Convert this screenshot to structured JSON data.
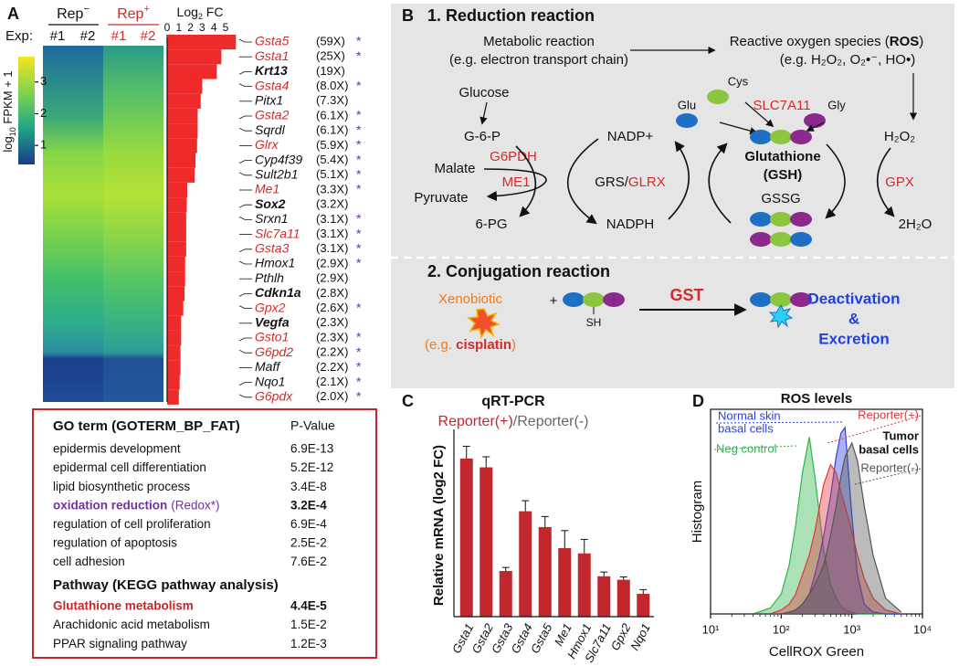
{
  "panel_a": {
    "letter": "A",
    "rep_minus": {
      "text": "Rep",
      "sup": "−"
    },
    "rep_plus": {
      "text": "Rep",
      "sup": "+"
    },
    "exp_label": "Exp:",
    "exps": [
      "#1",
      "#2",
      "#1",
      "#2"
    ],
    "colorbar": {
      "label_parts": [
        "log",
        "10",
        " FPKM + 1"
      ],
      "ticks": [
        1,
        2,
        3
      ],
      "lim": [
        0.4,
        3.8
      ]
    },
    "fc_title_parts": [
      "Log",
      "2",
      " FC"
    ],
    "star": "*",
    "genes": [
      {
        "name": "Gsta5",
        "fold": "(59X)",
        "red": true,
        "bold": false,
        "star": true
      },
      {
        "name": "Gsta1",
        "fold": "(25X)",
        "red": true,
        "bold": false,
        "star": true
      },
      {
        "name": "Krt13",
        "fold": "(19X)",
        "red": false,
        "bold": true,
        "star": false
      },
      {
        "name": "Gsta4",
        "fold": "(8.0X)",
        "red": true,
        "bold": false,
        "star": true
      },
      {
        "name": "Pitx1",
        "fold": "(7.3X)",
        "red": false,
        "bold": false,
        "star": false
      },
      {
        "name": "Gsta2",
        "fold": "(6.1X)",
        "red": true,
        "bold": false,
        "star": true
      },
      {
        "name": "Sqrdl",
        "fold": "(6.1X)",
        "red": false,
        "bold": false,
        "star": true
      },
      {
        "name": "Glrx",
        "fold": "(5.9X)",
        "red": true,
        "bold": false,
        "star": true
      },
      {
        "name": "Cyp4f39",
        "fold": "(5.4X)",
        "red": false,
        "bold": false,
        "star": true
      },
      {
        "name": "Sult2b1",
        "fold": "(5.1X)",
        "red": false,
        "bold": false,
        "star": true
      },
      {
        "name": "Me1",
        "fold": "(3.3X)",
        "red": true,
        "bold": false,
        "star": true
      },
      {
        "name": "Sox2",
        "fold": "(3.2X)",
        "red": false,
        "bold": true,
        "star": false
      },
      {
        "name": "Srxn1",
        "fold": "(3.1X)",
        "red": false,
        "bold": false,
        "star": true
      },
      {
        "name": "Slc7a11",
        "fold": "(3.1X)",
        "red": true,
        "bold": false,
        "star": true
      },
      {
        "name": "Gsta3",
        "fold": "(3.1X)",
        "red": true,
        "bold": false,
        "star": true
      },
      {
        "name": "Hmox1",
        "fold": "(2.9X)",
        "red": false,
        "bold": false,
        "star": true
      },
      {
        "name": "Pthlh",
        "fold": "(2.9X)",
        "red": false,
        "bold": false,
        "star": false
      },
      {
        "name": "Cdkn1a",
        "fold": "(2.8X)",
        "red": false,
        "bold": true,
        "star": false
      },
      {
        "name": "Gpx2",
        "fold": "(2.6X)",
        "red": true,
        "bold": false,
        "star": true
      },
      {
        "name": "Vegfa",
        "fold": "(2.3X)",
        "red": false,
        "bold": true,
        "star": false
      },
      {
        "name": "Gsto1",
        "fold": "(2.3X)",
        "red": true,
        "bold": false,
        "star": true
      },
      {
        "name": "G6pd2",
        "fold": "(2.2X)",
        "red": true,
        "bold": false,
        "star": true
      },
      {
        "name": "Maff",
        "fold": "(2.2X)",
        "red": false,
        "bold": false,
        "star": true
      },
      {
        "name": "Nqo1",
        "fold": "(2.1X)",
        "red": false,
        "bold": false,
        "star": true
      },
      {
        "name": "G6pdx",
        "fold": "(2.0X)",
        "red": true,
        "bold": false,
        "star": true
      }
    ]
  },
  "go_table": {
    "header": "GO term (GOTERM_BP_FAT)",
    "p_header": "P-Value",
    "rows": [
      {
        "term": "epidermis development",
        "p": "6.9E-13"
      },
      {
        "term": "epidermal cell differentiation",
        "p": "5.2E-12"
      },
      {
        "term": "lipid biosynthetic process",
        "p": "3.4E-8"
      },
      {
        "term": "oxidation reduction",
        "note": "(Redox*)",
        "p": "3.2E-4",
        "color": "#7030a0",
        "bold": true
      },
      {
        "term": "regulation of cell proliferation",
        "p": "6.9E-4"
      },
      {
        "term": "regulation of apoptosis",
        "p": "2.5E-2"
      },
      {
        "term": "cell adhesion",
        "p": "7.6E-2"
      }
    ],
    "pathway_header": "Pathway (KEGG pathway analysis)",
    "pathway_rows": [
      {
        "term": "Glutathione metabolism",
        "p": "4.4E-5",
        "color": "#c1272d",
        "bold": true
      },
      {
        "term": "Arachidonic acid metabolism",
        "p": "1.5E-2"
      },
      {
        "term": "PPAR signaling pathway",
        "p": "1.2E-3"
      }
    ]
  },
  "panel_b": {
    "letter": "B",
    "section1": "1. Reduction reaction",
    "metabolic": [
      "Metabolic reaction",
      "(e.g. electron transport chain)"
    ],
    "ros_parts": [
      "Reactive oxygen species (",
      "ROS",
      ")"
    ],
    "ros_example": "(e.g. H₂O₂, O₂•⁻, HO•)",
    "glucose": "Glucose",
    "g6p": "G-6-P",
    "g6pdh": "G6PDH",
    "malate": "Malate",
    "me1": "ME1",
    "pyruvate": "Pyruvate",
    "pg6": "6-PG",
    "nadp": "NADP+",
    "grs_parts": [
      "GRS/",
      "GLRX"
    ],
    "nadph": "NADPH",
    "cys": "Cys",
    "glu": "Glu",
    "gly": "Gly",
    "slc7a11": "SLC7A11",
    "gsh": [
      "Glutathione",
      "(GSH)"
    ],
    "gssg": "GSSG",
    "h2o2": "H₂O₂",
    "gpx": "GPX",
    "h2o": "2H₂O",
    "section2": "2. Conjugation reaction",
    "xenobiotic": "Xenobiotic",
    "eg_parts": [
      "(e.g. ",
      "cisplatin",
      ")"
    ],
    "plus": "+",
    "sh": "SH",
    "gst": "GST",
    "result": [
      "Deactivation",
      "&",
      "Excretion"
    ]
  },
  "panel_c": {
    "letter": "C"
  },
  "panel_d": {
    "letter": "D"
  },
  "chart_data": [
    {
      "type": "bar",
      "orientation": "horizontal",
      "color": "#ee2a2a",
      "values": [
        5.88,
        4.64,
        4.25,
        3.0,
        2.87,
        2.61,
        2.61,
        2.56,
        2.43,
        2.35,
        1.72,
        1.68,
        1.63,
        1.63,
        1.63,
        1.54,
        1.54,
        1.49,
        1.38,
        1.2,
        1.2,
        1.14,
        1.14,
        1.07,
        1.0
      ],
      "xlim": [
        0,
        6
      ],
      "xticks": [
        0,
        1,
        2,
        3,
        4,
        5
      ]
    },
    {
      "type": "bar",
      "title": "qRT-PCR",
      "subtitle_parts": [
        "Reporter(+)",
        "/",
        "Reporter(-)"
      ],
      "ylabel": "Relative mRNA (log2 FC)",
      "color": "#c1272d",
      "categories": [
        "Gsta1",
        "Gsta2",
        "Gsta3",
        "Gsta4",
        "Gsta5",
        "Me1",
        "Hmox1",
        "Slc7a11",
        "Gpx2",
        "Nqo1"
      ],
      "values": [
        4.5,
        4.25,
        1.3,
        3.0,
        2.55,
        1.95,
        1.8,
        1.15,
        1.05,
        0.65
      ],
      "errors": [
        0.35,
        0.3,
        0.1,
        0.3,
        0.3,
        0.5,
        0.4,
        0.12,
        0.08,
        0.12
      ],
      "ylim": [
        0,
        5.2
      ]
    },
    {
      "type": "area",
      "title": "ROS levels",
      "xlabel": "CellROX Green",
      "ylabel": "Histogram",
      "log_x": true,
      "xlim": [
        10,
        10000
      ],
      "xticks": [
        {
          "value": 10,
          "label": "10¹"
        },
        {
          "value": 100,
          "label": "10²"
        },
        {
          "value": 1000,
          "label": "10³"
        },
        {
          "value": 10000,
          "label": "10⁴"
        }
      ],
      "ylim": [
        0,
        1
      ],
      "x": [
        40,
        70,
        100,
        130,
        160,
        200,
        250,
        300,
        350,
        400,
        500,
        600,
        700,
        800,
        1000,
        1200,
        1500,
        2000,
        3000,
        5000
      ],
      "group_label_lines": [
        "Tumor",
        "basal cells"
      ],
      "series": [
        {
          "label_lines": [
            "Neg control"
          ],
          "color": "#2fb34a",
          "values": [
            0,
            0.03,
            0.1,
            0.25,
            0.45,
            0.72,
            0.9,
            0.7,
            0.5,
            0.32,
            0.15,
            0.08,
            0.04,
            0.02,
            0.01,
            0,
            0,
            0,
            0,
            0
          ]
        },
        {
          "label_lines": [
            "Normal skin",
            "basal cells"
          ],
          "color": "#2a3ee0",
          "values": [
            0,
            0,
            0,
            0.01,
            0.02,
            0.05,
            0.1,
            0.2,
            0.3,
            0.4,
            0.6,
            0.8,
            0.92,
            0.95,
            0.5,
            0.2,
            0.05,
            0.01,
            0,
            0
          ]
        },
        {
          "label_lines": [
            "Reporter(+)"
          ],
          "color": "#e0383a",
          "values": [
            0,
            0,
            0.02,
            0.05,
            0.1,
            0.2,
            0.3,
            0.42,
            0.55,
            0.66,
            0.76,
            0.72,
            0.62,
            0.55,
            0.42,
            0.3,
            0.18,
            0.08,
            0.02,
            0
          ]
        },
        {
          "label_lines": [
            "Reporter(-)"
          ],
          "color": "#555555",
          "values": [
            0,
            0,
            0,
            0.01,
            0.02,
            0.05,
            0.1,
            0.15,
            0.2,
            0.25,
            0.4,
            0.55,
            0.7,
            0.8,
            0.87,
            0.78,
            0.55,
            0.3,
            0.08,
            0.01
          ]
        }
      ]
    }
  ]
}
